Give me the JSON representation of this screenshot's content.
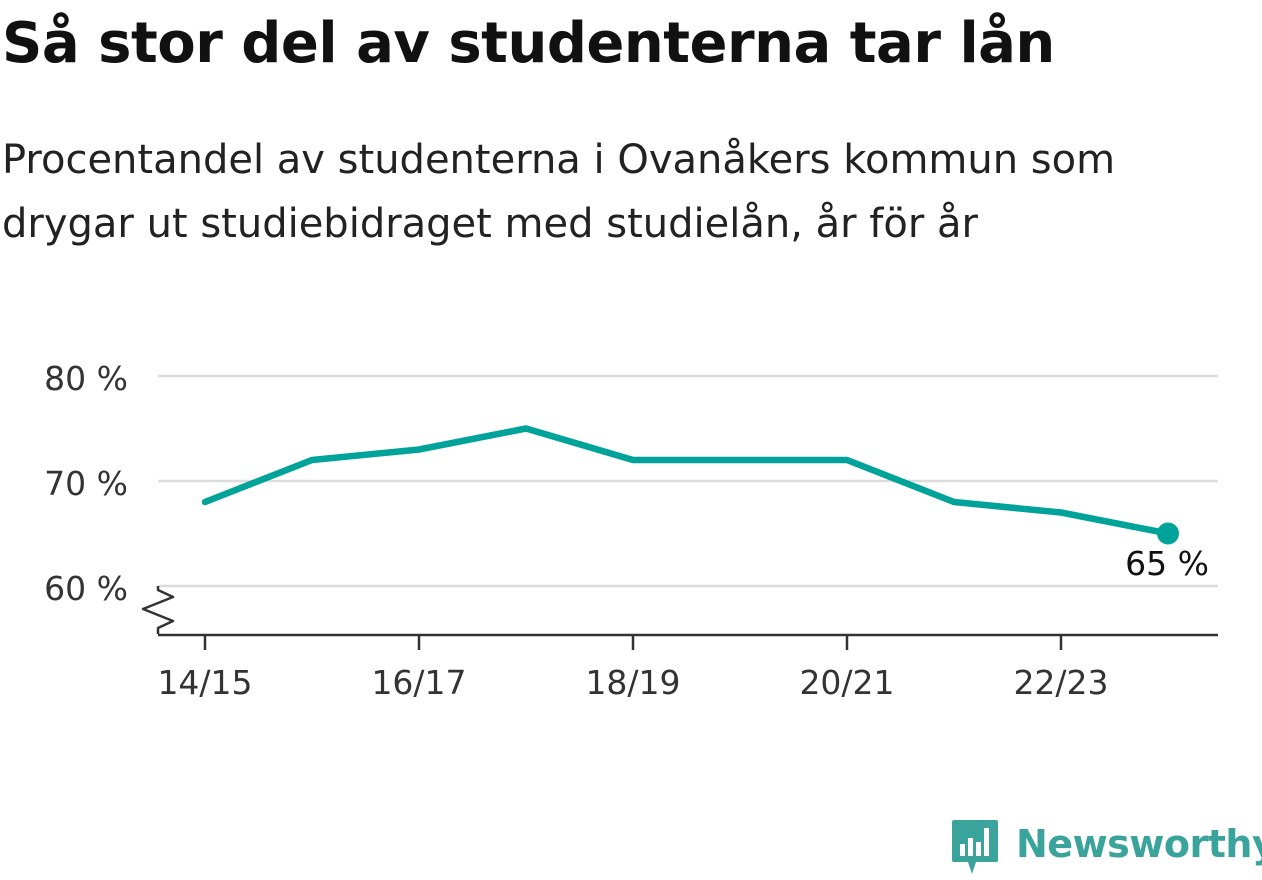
{
  "title": "Så stor del av studenterna tar lån",
  "subtitle": "Procentandel av studenterna i Ovanåkers kommun som drygar ut studiebidraget med studielån, år för år",
  "brand": {
    "name": "Newsworthy",
    "color": "#3aa39c",
    "icon": "newsworthy-logo-icon"
  },
  "chart_data": {
    "type": "line",
    "title": "Så stor del av studenterna tar lån",
    "subtitle": "Procentandel av studenterna i Ovanåkers kommun som drygar ut studiebidraget med studielån, år för år",
    "categories": [
      "14/15",
      "15/16",
      "16/17",
      "17/18",
      "18/19",
      "19/20",
      "20/21",
      "21/22",
      "22/23",
      "23/24"
    ],
    "x_tick_labels": [
      "14/15",
      "16/17",
      "18/19",
      "20/21",
      "22/23"
    ],
    "series": [
      {
        "values": [
          68,
          72,
          73,
          75,
          72,
          72,
          72,
          68,
          67,
          65
        ],
        "color": "#00a39a"
      }
    ],
    "y_ticks": [
      60,
      70,
      80
    ],
    "y_tick_labels": [
      "60 %",
      "70 %",
      "80 %"
    ],
    "ylim": [
      55,
      80
    ],
    "axis_break": true,
    "grid": true,
    "end_label": "65 %"
  }
}
